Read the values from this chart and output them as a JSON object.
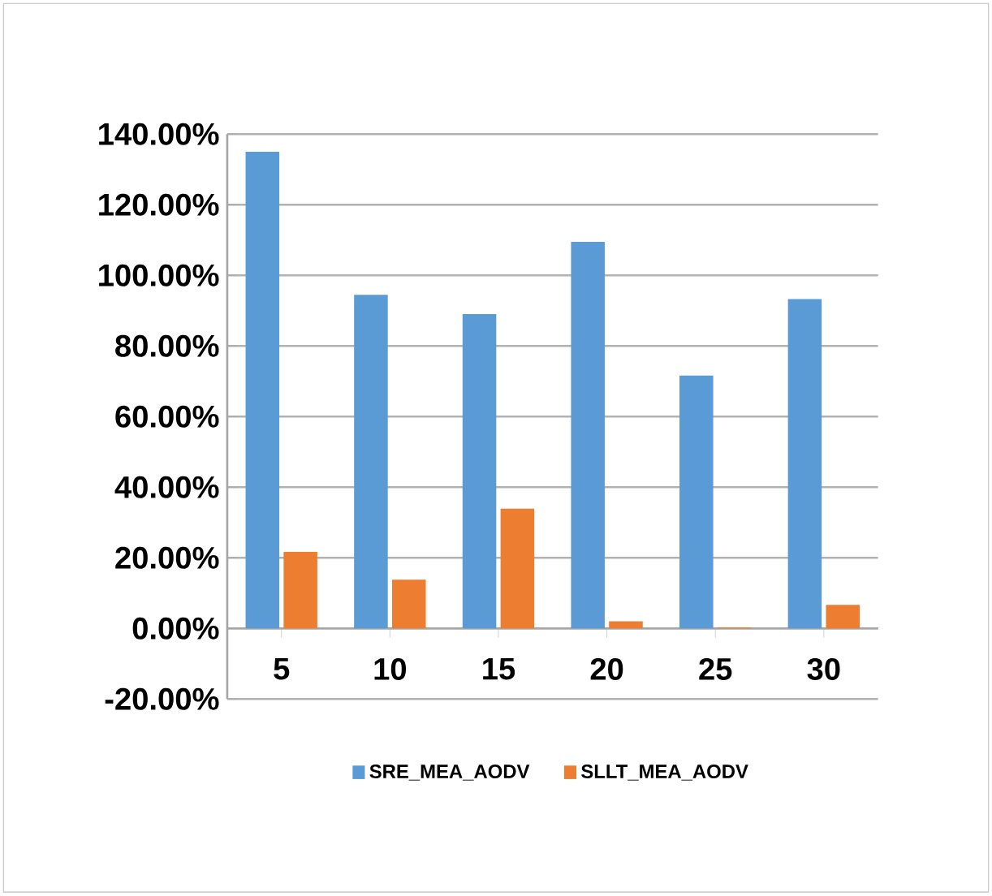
{
  "chart_data": {
    "type": "bar",
    "categories": [
      "5",
      "10",
      "15",
      "20",
      "25",
      "30"
    ],
    "series": [
      {
        "name": "SRE_MEA_AODV",
        "color": "#5b9bd5",
        "values": [
          135,
          94.5,
          89,
          109.5,
          71.6,
          93.3
        ]
      },
      {
        "name": "SLLT_MEA_AODV",
        "color": "#ed7d31",
        "values": [
          21.7,
          13.8,
          33.9,
          2,
          0.3,
          6.7
        ]
      }
    ],
    "ylim": [
      -20,
      140
    ],
    "yticks": [
      {
        "value": -20,
        "label": "-20.00%"
      },
      {
        "value": 0,
        "label": "0.00%"
      },
      {
        "value": 20,
        "label": "20.00%"
      },
      {
        "value": 40,
        "label": "40.00%"
      },
      {
        "value": 60,
        "label": "60.00%"
      },
      {
        "value": 80,
        "label": "80.00%"
      },
      {
        "value": 100,
        "label": "100.00%"
      },
      {
        "value": 120,
        "label": "120.00%"
      },
      {
        "value": 140,
        "label": "140.00%"
      }
    ],
    "grid": "y",
    "legend": "bottom"
  }
}
